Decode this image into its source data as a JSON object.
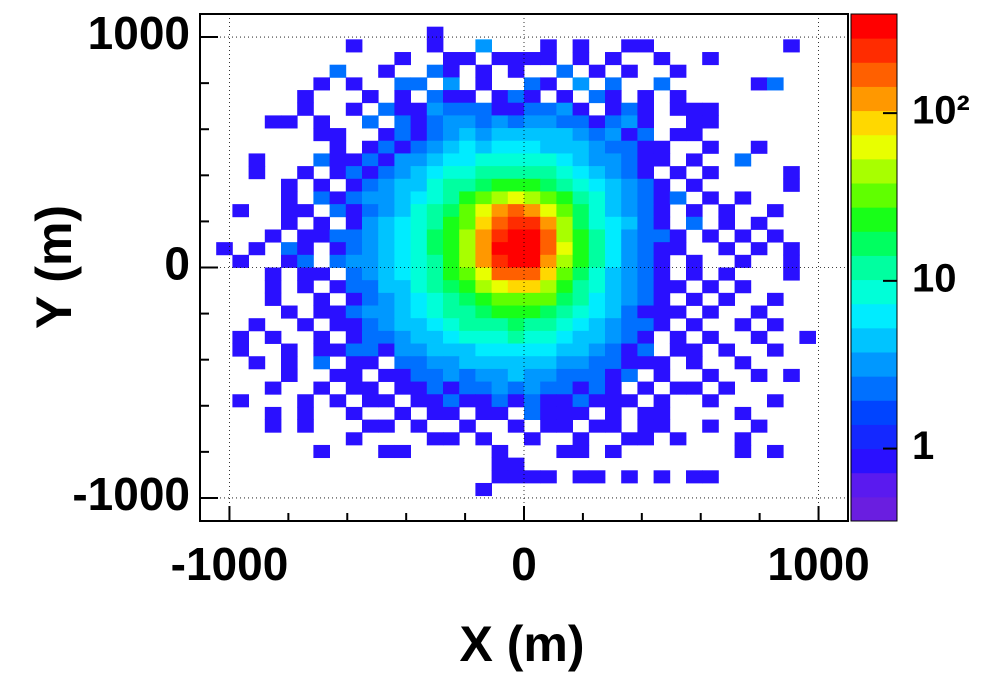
{
  "chart_data": {
    "type": "heatmap",
    "x_label": "X (m)",
    "y_label": "Y (m)",
    "xlim": [
      -1100,
      1100
    ],
    "ylim": [
      -1100,
      1100
    ],
    "xticks": [
      -1000,
      0,
      1000
    ],
    "yticks": [
      -1000,
      0,
      1000
    ],
    "xminorticks": [
      -800,
      -600,
      -400,
      -200,
      200,
      400,
      600,
      800
    ],
    "yminorticks": [
      -800,
      -600,
      -400,
      -200,
      200,
      400,
      600,
      800
    ],
    "grid": true,
    "zlim": [
      0.37,
      390
    ],
    "zlog": true,
    "zticks": [
      1,
      10,
      {
        "value": 100,
        "label": "10²"
      }
    ],
    "palette": [
      "#6a1ee0",
      "#5a1aef",
      "#2a10ff",
      "#1428ff",
      "#0044ff",
      "#0070ff",
      "#0098ff",
      "#00c4ff",
      "#00ecff",
      "#00ffd8",
      "#00ffa0",
      "#00ff60",
      "#18ff18",
      "#60ff00",
      "#a8ff00",
      "#e8ff00",
      "#ffd800",
      "#ff9800",
      "#ff6000",
      "#ff2c00",
      "#ff0000"
    ],
    "z": [
      [
        0,
        0,
        0,
        0,
        0,
        0,
        0,
        0,
        0,
        0,
        0,
        0,
        0,
        0,
        0,
        0,
        0,
        0,
        0,
        0,
        0,
        0,
        0,
        0,
        0,
        0,
        0,
        0,
        0,
        0,
        0,
        0,
        0,
        0,
        0,
        0,
        0,
        0,
        0,
        0
      ],
      [
        0,
        0,
        0,
        0,
        0,
        0,
        0,
        0,
        0,
        0,
        0,
        0,
        0,
        0,
        1,
        0,
        0,
        0,
        0,
        0,
        0,
        0,
        0,
        0,
        0,
        0,
        0,
        0,
        0,
        0,
        0,
        0,
        0,
        0,
        0,
        0,
        0,
        0,
        0,
        0
      ],
      [
        0,
        0,
        0,
        0,
        0,
        0,
        0,
        0,
        0,
        1,
        0,
        0,
        0,
        0,
        1,
        0,
        0,
        3,
        0,
        0,
        0,
        1,
        0,
        1,
        0,
        0,
        1,
        1,
        0,
        0,
        0,
        0,
        0,
        0,
        0,
        0,
        1,
        0,
        0,
        0
      ],
      [
        0,
        0,
        0,
        0,
        0,
        0,
        0,
        0,
        0,
        0,
        0,
        0,
        1,
        0,
        0,
        1,
        1,
        0,
        1,
        1,
        1,
        1,
        0,
        1,
        0,
        1,
        0,
        0,
        1,
        0,
        0,
        1,
        0,
        0,
        0,
        0,
        0,
        0,
        0,
        0
      ],
      [
        0,
        0,
        0,
        0,
        0,
        0,
        0,
        0,
        2,
        0,
        0,
        1,
        0,
        0,
        2,
        1,
        0,
        1,
        0,
        1,
        0,
        0,
        2,
        0,
        1,
        0,
        1,
        0,
        0,
        1,
        0,
        0,
        0,
        0,
        0,
        0,
        0,
        0,
        0,
        0
      ],
      [
        0,
        0,
        0,
        0,
        0,
        0,
        0,
        1,
        0,
        1,
        0,
        0,
        2,
        2,
        0,
        3,
        0,
        1,
        0,
        0,
        2,
        1,
        0,
        3,
        0,
        2,
        0,
        0,
        2,
        0,
        0,
        0,
        0,
        0,
        1,
        2,
        0,
        0,
        0,
        0
      ],
      [
        0,
        0,
        0,
        0,
        0,
        0,
        1,
        0,
        0,
        0,
        1,
        0,
        1,
        0,
        2,
        1,
        1,
        0,
        1,
        2,
        1,
        0,
        1,
        0,
        2,
        1,
        0,
        1,
        0,
        1,
        0,
        0,
        0,
        0,
        0,
        0,
        0,
        0,
        0,
        0
      ],
      [
        0,
        0,
        0,
        0,
        0,
        0,
        1,
        0,
        0,
        1,
        0,
        2,
        1,
        1,
        3,
        2,
        2,
        2,
        1,
        1,
        2,
        2,
        3,
        1,
        0,
        1,
        2,
        1,
        0,
        1,
        1,
        1,
        0,
        0,
        0,
        0,
        0,
        0,
        0,
        0
      ],
      [
        0,
        0,
        0,
        0,
        1,
        1,
        0,
        1,
        0,
        0,
        2,
        0,
        2,
        1,
        2,
        3,
        3,
        2,
        3,
        2,
        3,
        3,
        2,
        2,
        1,
        2,
        3,
        1,
        0,
        0,
        1,
        1,
        0,
        0,
        0,
        0,
        0,
        0,
        0,
        0
      ],
      [
        0,
        0,
        0,
        0,
        0,
        0,
        0,
        1,
        1,
        0,
        0,
        1,
        2,
        1,
        2,
        3,
        4,
        3,
        5,
        4,
        5,
        4,
        4,
        3,
        2,
        3,
        1,
        2,
        0,
        1,
        1,
        0,
        0,
        0,
        0,
        0,
        0,
        0,
        0,
        0
      ],
      [
        0,
        0,
        0,
        0,
        0,
        0,
        0,
        0,
        1,
        0,
        1,
        2,
        1,
        2,
        3,
        4,
        6,
        5,
        6,
        7,
        6,
        5,
        4,
        4,
        3,
        2,
        2,
        1,
        1,
        0,
        0,
        1,
        0,
        0,
        1,
        0,
        0,
        0,
        0,
        0
      ],
      [
        0,
        0,
        0,
        1,
        0,
        0,
        0,
        2,
        1,
        1,
        2,
        1,
        3,
        3,
        4,
        6,
        7,
        9,
        8,
        10,
        9,
        8,
        6,
        5,
        3,
        3,
        2,
        1,
        1,
        0,
        1,
        0,
        0,
        2,
        0,
        0,
        0,
        0,
        0,
        0
      ],
      [
        0,
        0,
        0,
        1,
        0,
        0,
        1,
        0,
        1,
        2,
        1,
        2,
        3,
        4,
        6,
        8,
        10,
        12,
        13,
        14,
        13,
        12,
        9,
        7,
        5,
        3,
        2,
        1,
        0,
        1,
        0,
        1,
        0,
        0,
        0,
        0,
        1,
        0,
        0,
        0
      ],
      [
        0,
        0,
        0,
        0,
        0,
        1,
        0,
        1,
        0,
        1,
        2,
        3,
        4,
        5,
        8,
        11,
        14,
        18,
        22,
        24,
        22,
        18,
        13,
        9,
        6,
        4,
        3,
        2,
        1,
        0,
        1,
        0,
        0,
        0,
        0,
        0,
        1,
        0,
        0,
        0
      ],
      [
        0,
        0,
        0,
        0,
        0,
        1,
        0,
        2,
        1,
        2,
        3,
        3,
        5,
        7,
        10,
        14,
        20,
        30,
        45,
        55,
        50,
        35,
        20,
        12,
        8,
        5,
        3,
        2,
        1,
        2,
        0,
        1,
        0,
        1,
        0,
        0,
        0,
        0,
        0,
        0
      ],
      [
        0,
        0,
        1,
        0,
        0,
        1,
        1,
        0,
        2,
        1,
        2,
        3,
        5,
        8,
        12,
        18,
        28,
        60,
        110,
        150,
        130,
        70,
        30,
        15,
        9,
        5,
        3,
        2,
        1,
        0,
        1,
        0,
        1,
        0,
        0,
        1,
        0,
        0,
        0,
        0
      ],
      [
        0,
        0,
        0,
        0,
        0,
        1,
        0,
        1,
        0,
        1,
        3,
        4,
        6,
        9,
        13,
        20,
        35,
        90,
        200,
        260,
        230,
        110,
        40,
        18,
        10,
        6,
        4,
        2,
        1,
        0,
        2,
        0,
        1,
        0,
        1,
        0,
        0,
        0,
        0,
        0
      ],
      [
        0,
        0,
        0,
        0,
        1,
        0,
        1,
        1,
        2,
        2,
        3,
        5,
        7,
        10,
        15,
        22,
        45,
        120,
        260,
        350,
        320,
        150,
        50,
        20,
        11,
        6,
        3,
        2,
        2,
        1,
        0,
        1,
        0,
        1,
        0,
        1,
        0,
        0,
        0,
        0
      ],
      [
        0,
        1,
        0,
        1,
        0,
        2,
        1,
        0,
        1,
        2,
        3,
        5,
        7,
        10,
        15,
        24,
        50,
        130,
        300,
        380,
        350,
        170,
        55,
        22,
        12,
        6,
        3,
        2,
        1,
        1,
        0,
        0,
        1,
        0,
        1,
        0,
        1,
        0,
        0,
        0
      ],
      [
        0,
        0,
        1,
        0,
        0,
        1,
        2,
        0,
        2,
        3,
        3,
        5,
        7,
        9,
        14,
        22,
        45,
        110,
        250,
        330,
        300,
        140,
        48,
        20,
        11,
        6,
        3,
        2,
        1,
        0,
        1,
        0,
        0,
        1,
        0,
        0,
        1,
        0,
        0,
        0
      ],
      [
        0,
        0,
        0,
        0,
        1,
        0,
        1,
        1,
        0,
        2,
        3,
        4,
        6,
        9,
        13,
        20,
        32,
        70,
        150,
        200,
        180,
        90,
        35,
        16,
        9,
        5,
        3,
        2,
        1,
        0,
        1,
        0,
        1,
        0,
        0,
        0,
        1,
        0,
        0,
        0
      ],
      [
        0,
        0,
        0,
        0,
        1,
        0,
        1,
        0,
        1,
        2,
        2,
        4,
        5,
        8,
        12,
        17,
        25,
        40,
        70,
        90,
        80,
        50,
        25,
        13,
        8,
        5,
        3,
        2,
        1,
        1,
        0,
        1,
        0,
        1,
        0,
        0,
        0,
        0,
        0,
        0
      ],
      [
        0,
        0,
        0,
        0,
        1,
        0,
        0,
        1,
        0,
        1,
        2,
        3,
        5,
        7,
        10,
        14,
        18,
        24,
        32,
        38,
        35,
        28,
        18,
        11,
        7,
        4,
        3,
        2,
        1,
        0,
        1,
        0,
        1,
        0,
        0,
        1,
        0,
        0,
        0,
        0
      ],
      [
        0,
        0,
        0,
        0,
        0,
        1,
        0,
        1,
        1,
        2,
        3,
        3,
        4,
        6,
        8,
        11,
        14,
        17,
        20,
        22,
        21,
        18,
        13,
        9,
        6,
        4,
        2,
        1,
        1,
        1,
        0,
        1,
        0,
        0,
        1,
        0,
        0,
        0,
        0,
        0
      ],
      [
        0,
        0,
        0,
        1,
        0,
        0,
        1,
        0,
        1,
        1,
        2,
        3,
        4,
        5,
        7,
        9,
        11,
        13,
        14,
        15,
        14,
        12,
        10,
        7,
        5,
        3,
        2,
        2,
        1,
        0,
        1,
        0,
        0,
        1,
        0,
        1,
        0,
        0,
        0,
        0
      ],
      [
        0,
        0,
        1,
        0,
        1,
        0,
        0,
        1,
        0,
        1,
        2,
        2,
        3,
        4,
        5,
        6,
        8,
        9,
        10,
        11,
        10,
        9,
        7,
        5,
        4,
        3,
        2,
        1,
        0,
        1,
        0,
        1,
        0,
        0,
        1,
        0,
        0,
        1,
        0,
        0
      ],
      [
        0,
        0,
        1,
        0,
        0,
        1,
        0,
        1,
        1,
        2,
        2,
        1,
        3,
        3,
        4,
        4,
        5,
        6,
        7,
        7,
        7,
        6,
        5,
        4,
        3,
        2,
        1,
        2,
        0,
        1,
        1,
        0,
        1,
        0,
        0,
        1,
        0,
        0,
        0,
        0
      ],
      [
        0,
        0,
        0,
        1,
        0,
        1,
        0,
        2,
        0,
        1,
        1,
        0,
        2,
        2,
        3,
        3,
        4,
        4,
        5,
        5,
        4,
        5,
        3,
        3,
        2,
        2,
        1,
        1,
        1,
        0,
        1,
        0,
        0,
        1,
        0,
        0,
        0,
        0,
        0,
        0
      ],
      [
        0,
        0,
        0,
        0,
        0,
        1,
        0,
        0,
        1,
        1,
        0,
        1,
        1,
        2,
        2,
        3,
        2,
        3,
        3,
        4,
        3,
        3,
        2,
        2,
        2,
        1,
        2,
        0,
        1,
        0,
        0,
        1,
        0,
        0,
        1,
        0,
        1,
        0,
        0,
        0
      ],
      [
        0,
        0,
        0,
        0,
        1,
        0,
        0,
        1,
        0,
        1,
        1,
        0,
        1,
        1,
        2,
        1,
        2,
        2,
        3,
        2,
        3,
        2,
        2,
        1,
        2,
        1,
        0,
        1,
        0,
        1,
        1,
        0,
        1,
        0,
        0,
        0,
        0,
        0,
        0,
        0
      ],
      [
        0,
        0,
        1,
        0,
        0,
        0,
        1,
        0,
        1,
        0,
        1,
        1,
        0,
        1,
        1,
        2,
        1,
        1,
        2,
        1,
        2,
        1,
        1,
        2,
        1,
        1,
        1,
        0,
        1,
        0,
        0,
        1,
        0,
        0,
        0,
        1,
        0,
        0,
        0,
        0
      ],
      [
        0,
        0,
        0,
        0,
        1,
        0,
        1,
        0,
        0,
        1,
        0,
        0,
        1,
        0,
        1,
        1,
        0,
        1,
        1,
        0,
        2,
        1,
        1,
        1,
        0,
        1,
        0,
        1,
        1,
        0,
        0,
        0,
        0,
        1,
        0,
        0,
        0,
        0,
        0,
        0
      ],
      [
        0,
        0,
        0,
        0,
        1,
        0,
        1,
        0,
        0,
        0,
        1,
        1,
        0,
        1,
        0,
        0,
        1,
        0,
        0,
        1,
        0,
        1,
        1,
        0,
        1,
        1,
        0,
        1,
        1,
        0,
        0,
        1,
        0,
        0,
        1,
        0,
        0,
        0,
        0,
        0
      ],
      [
        0,
        0,
        0,
        0,
        0,
        0,
        0,
        0,
        0,
        1,
        0,
        0,
        0,
        0,
        1,
        1,
        0,
        1,
        0,
        0,
        1,
        0,
        0,
        1,
        0,
        0,
        1,
        1,
        0,
        1,
        0,
        0,
        0,
        1,
        0,
        0,
        0,
        0,
        0,
        0
      ],
      [
        0,
        0,
        0,
        0,
        0,
        0,
        0,
        1,
        0,
        0,
        0,
        1,
        1,
        0,
        0,
        0,
        0,
        0,
        1,
        0,
        0,
        0,
        1,
        1,
        0,
        1,
        0,
        0,
        0,
        0,
        0,
        0,
        0,
        1,
        0,
        1,
        0,
        0,
        0,
        0
      ],
      [
        0,
        0,
        0,
        0,
        0,
        0,
        0,
        0,
        0,
        0,
        0,
        0,
        0,
        0,
        0,
        0,
        0,
        0,
        1,
        1,
        0,
        0,
        0,
        0,
        0,
        0,
        0,
        0,
        0,
        0,
        0,
        0,
        0,
        0,
        0,
        0,
        0,
        0,
        0,
        0
      ],
      [
        0,
        0,
        0,
        0,
        0,
        0,
        0,
        0,
        0,
        0,
        0,
        0,
        0,
        0,
        0,
        0,
        0,
        0,
        1,
        1,
        1,
        1,
        0,
        1,
        1,
        0,
        1,
        0,
        1,
        0,
        1,
        1,
        0,
        0,
        0,
        0,
        0,
        0,
        0,
        0
      ],
      [
        0,
        0,
        0,
        0,
        0,
        0,
        0,
        0,
        0,
        0,
        0,
        0,
        0,
        0,
        0,
        0,
        0,
        1,
        0,
        0,
        0,
        0,
        0,
        0,
        0,
        0,
        0,
        0,
        0,
        0,
        0,
        0,
        0,
        0,
        0,
        0,
        0,
        0,
        0,
        0
      ],
      [
        0,
        0,
        0,
        0,
        0,
        0,
        0,
        0,
        0,
        0,
        0,
        0,
        0,
        0,
        0,
        0,
        0,
        0,
        0,
        0,
        0,
        0,
        0,
        0,
        0,
        0,
        0,
        0,
        0,
        0,
        0,
        0,
        0,
        0,
        0,
        0,
        0,
        0,
        0,
        0
      ],
      [
        0,
        0,
        0,
        0,
        0,
        0,
        0,
        0,
        0,
        0,
        0,
        0,
        0,
        0,
        0,
        0,
        0,
        0,
        0,
        0,
        0,
        0,
        0,
        0,
        0,
        0,
        0,
        0,
        0,
        0,
        0,
        0,
        0,
        0,
        0,
        0,
        0,
        0,
        0,
        0
      ]
    ]
  }
}
